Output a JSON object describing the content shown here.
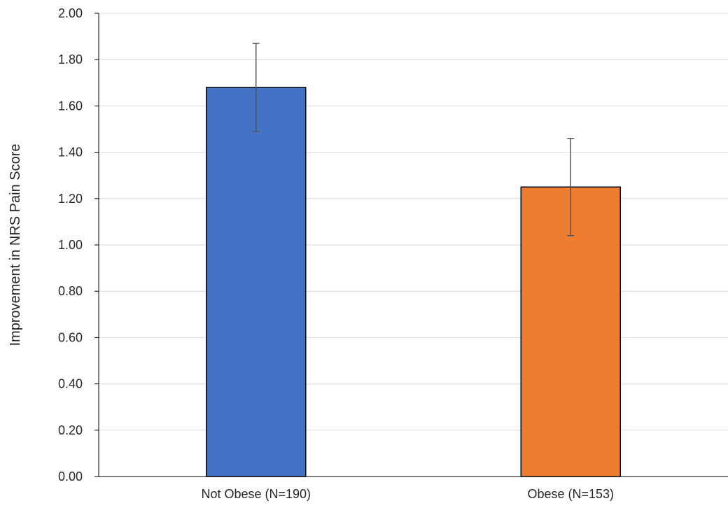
{
  "chart_data": {
    "type": "bar",
    "categories": [
      "Not Obese (N=190)",
      "Obese (N=153)"
    ],
    "values": [
      1.68,
      1.25
    ],
    "error_bars": {
      "upper": [
        1.87,
        1.46
      ],
      "lower": [
        1.49,
        1.04
      ]
    },
    "colors": [
      "#4472c4",
      "#ed7d31"
    ],
    "title": "",
    "xlabel": "",
    "ylabel": "Improvement in NRS Pain Score",
    "ylim": [
      0,
      2.0
    ],
    "yticks": [
      "0.00",
      "0.20",
      "0.40",
      "0.60",
      "0.80",
      "1.00",
      "1.20",
      "1.40",
      "1.60",
      "1.80",
      "2.00"
    ],
    "grid": true,
    "legend": "none"
  }
}
